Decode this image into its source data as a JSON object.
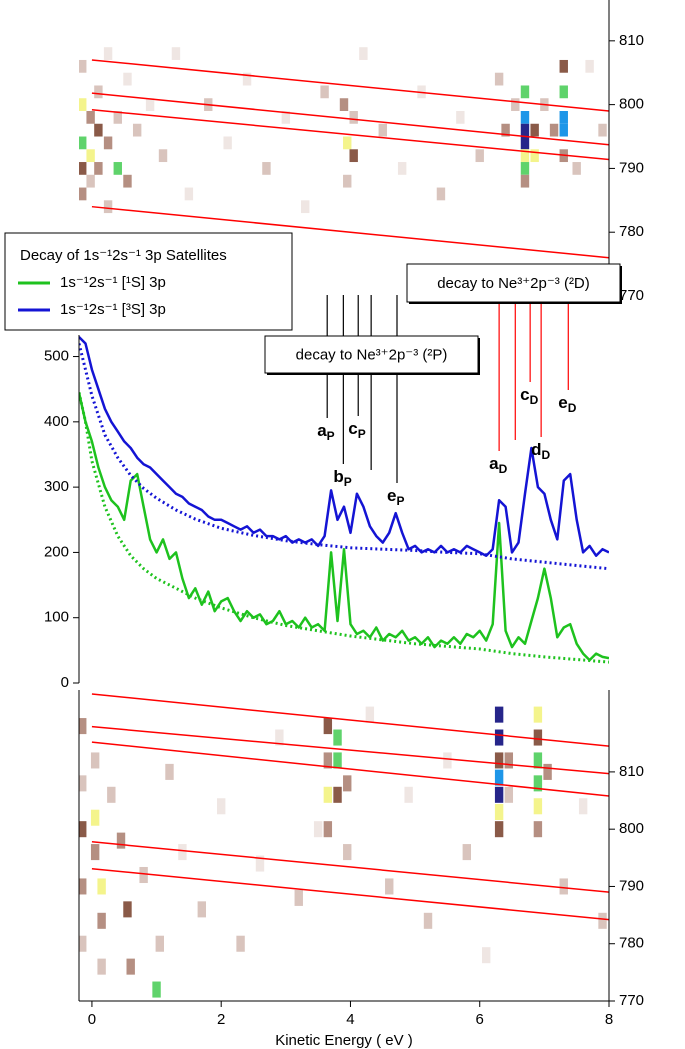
{
  "chart_data": [
    {
      "type": "heatmap",
      "xlim": [
        -0.2,
        8
      ],
      "ylim": [
        770,
        816.4
      ],
      "yticks": [
        770,
        780,
        790,
        800,
        810
      ],
      "yaxis": "right",
      "colorscale": [
        "#ffffff",
        "#efe6e3",
        "#d9c4bd",
        "#b58f82",
        "#8a5a48",
        "#f4f48c",
        "#5fd36b",
        "#1e96e8",
        "#26258a"
      ],
      "cells": [
        [
          -0.15,
          800,
          5
        ],
        [
          -0.15,
          794,
          6
        ],
        [
          -0.15,
          790,
          4
        ],
        [
          -0.15,
          806,
          2
        ],
        [
          -0.15,
          786,
          3
        ],
        [
          -0.02,
          798,
          3
        ],
        [
          -0.02,
          792,
          5
        ],
        [
          -0.02,
          788,
          2
        ],
        [
          0.1,
          802,
          2
        ],
        [
          0.1,
          796,
          4
        ],
        [
          0.1,
          790,
          3
        ],
        [
          0.25,
          808,
          1
        ],
        [
          0.25,
          794,
          3
        ],
        [
          0.25,
          784,
          2
        ],
        [
          0.4,
          790,
          6
        ],
        [
          0.4,
          798,
          2
        ],
        [
          0.55,
          804,
          1
        ],
        [
          0.55,
          788,
          3
        ],
        [
          0.7,
          796,
          2
        ],
        [
          0.9,
          800,
          1
        ],
        [
          1.1,
          792,
          2
        ],
        [
          1.3,
          808,
          1
        ],
        [
          1.5,
          786,
          1
        ],
        [
          1.8,
          800,
          2
        ],
        [
          2.1,
          794,
          1
        ],
        [
          2.4,
          804,
          1
        ],
        [
          2.7,
          790,
          2
        ],
        [
          3.0,
          798,
          1
        ],
        [
          3.3,
          784,
          1
        ],
        [
          3.6,
          802,
          2
        ],
        [
          3.9,
          800,
          3
        ],
        [
          3.95,
          794,
          5
        ],
        [
          4.05,
          792,
          4
        ],
        [
          4.05,
          798,
          2
        ],
        [
          3.95,
          788,
          2
        ],
        [
          4.2,
          808,
          1
        ],
        [
          4.5,
          796,
          2
        ],
        [
          4.8,
          790,
          1
        ],
        [
          5.1,
          802,
          1
        ],
        [
          5.4,
          786,
          2
        ],
        [
          5.7,
          798,
          1
        ],
        [
          6.0,
          792,
          2
        ],
        [
          6.3,
          804,
          2
        ],
        [
          6.4,
          796,
          3
        ],
        [
          6.55,
          800,
          2
        ],
        [
          6.7,
          802,
          6
        ],
        [
          6.7,
          798,
          7
        ],
        [
          6.7,
          796,
          8
        ],
        [
          6.7,
          794,
          8
        ],
        [
          6.7,
          792,
          5
        ],
        [
          6.7,
          790,
          6
        ],
        [
          6.7,
          788,
          3
        ],
        [
          6.85,
          796,
          4
        ],
        [
          6.85,
          792,
          5
        ],
        [
          7.0,
          800,
          2
        ],
        [
          7.15,
          796,
          3
        ],
        [
          7.3,
          802,
          6
        ],
        [
          7.3,
          798,
          7
        ],
        [
          7.3,
          796,
          7
        ],
        [
          7.3,
          806,
          4
        ],
        [
          7.3,
          792,
          3
        ],
        [
          7.5,
          790,
          2
        ],
        [
          7.7,
          806,
          1
        ],
        [
          7.9,
          796,
          2
        ]
      ],
      "line_color": "#ff0000",
      "lines": [
        {
          "x": [
            0,
            8
          ],
          "y": [
            807.0,
            799.0
          ]
        },
        {
          "x": [
            0,
            8
          ],
          "y": [
            801.8,
            793.7
          ]
        },
        {
          "x": [
            0,
            8
          ],
          "y": [
            799.2,
            791.4
          ]
        },
        {
          "x": [
            0,
            8
          ],
          "y": [
            784.0,
            776.0
          ]
        }
      ]
    },
    {
      "type": "line",
      "xlim": [
        -0.2,
        8
      ],
      "ylim": [
        0,
        533
      ],
      "yticks": [
        0,
        100,
        200,
        300,
        400,
        500
      ],
      "yaxis": "left",
      "legend": "upper left",
      "legend_title": "Decay of 1s⁻¹2s⁻¹ 3p Satellites",
      "x": [
        -0.2,
        -0.1,
        0,
        0.1,
        0.2,
        0.3,
        0.4,
        0.5,
        0.6,
        0.7,
        0.8,
        0.9,
        1.0,
        1.1,
        1.2,
        1.3,
        1.4,
        1.5,
        1.6,
        1.7,
        1.8,
        1.9,
        2.0,
        2.1,
        2.2,
        2.3,
        2.4,
        2.5,
        2.6,
        2.7,
        2.8,
        2.9,
        3.0,
        3.1,
        3.2,
        3.3,
        3.4,
        3.5,
        3.6,
        3.7,
        3.8,
        3.9,
        4.0,
        4.1,
        4.2,
        4.3,
        4.4,
        4.5,
        4.6,
        4.7,
        4.8,
        4.9,
        5.0,
        5.1,
        5.2,
        5.3,
        5.4,
        5.5,
        5.6,
        5.7,
        5.8,
        5.9,
        6.0,
        6.1,
        6.2,
        6.3,
        6.4,
        6.5,
        6.6,
        6.7,
        6.8,
        6.9,
        7.0,
        7.1,
        7.2,
        7.3,
        7.4,
        7.5,
        7.6,
        7.7,
        7.8,
        7.9,
        8.0
      ],
      "series": [
        {
          "name": "1s⁻¹2s⁻¹ [¹S] 3p",
          "color": "#1ec21e",
          "style": "solid",
          "values": [
            445,
            400,
            370,
            330,
            300,
            280,
            270,
            250,
            310,
            320,
            270,
            220,
            200,
            220,
            190,
            200,
            160,
            130,
            145,
            120,
            140,
            110,
            125,
            130,
            110,
            95,
            110,
            100,
            105,
            90,
            95,
            110,
            90,
            95,
            85,
            100,
            85,
            90,
            80,
            200,
            95,
            205,
            90,
            75,
            80,
            70,
            85,
            65,
            75,
            70,
            80,
            65,
            70,
            60,
            70,
            55,
            65,
            60,
            70,
            60,
            75,
            70,
            80,
            65,
            90,
            245,
            80,
            55,
            70,
            60,
            95,
            130,
            175,
            130,
            70,
            85,
            90,
            60,
            45,
            35,
            45,
            40,
            38
          ]
        },
        {
          "name": "1s⁻¹2s⁻¹ [³S] 3p",
          "color": "#1414d4",
          "style": "solid",
          "values": [
            530,
            520,
            480,
            450,
            420,
            400,
            385,
            370,
            360,
            345,
            335,
            330,
            320,
            310,
            300,
            290,
            285,
            275,
            270,
            265,
            255,
            250,
            250,
            245,
            240,
            235,
            240,
            230,
            235,
            225,
            225,
            220,
            225,
            215,
            220,
            215,
            220,
            210,
            225,
            295,
            250,
            270,
            230,
            290,
            270,
            240,
            225,
            215,
            230,
            260,
            230,
            205,
            210,
            200,
            205,
            200,
            210,
            200,
            205,
            200,
            210,
            205,
            200,
            195,
            205,
            280,
            270,
            200,
            215,
            290,
            360,
            300,
            290,
            250,
            220,
            310,
            320,
            250,
            200,
            210,
            195,
            205,
            200
          ]
        },
        {
          "color": "#1414d4",
          "style": "dotted",
          "x": [
            -0.2,
            -0.1,
            0,
            0.2,
            0.4,
            0.6,
            0.8,
            1.0,
            1.3,
            1.6,
            2.0,
            2.5,
            3.0,
            3.5,
            4.0,
            4.5,
            5.0,
            5.5,
            6.0,
            6.5,
            7.0,
            7.5,
            8.0
          ],
          "values": [
            520,
            480,
            440,
            380,
            345,
            318,
            298,
            283,
            265,
            251,
            237,
            226,
            218,
            212,
            207,
            205,
            203,
            200,
            198,
            190,
            185,
            180,
            175
          ]
        },
        {
          "color": "#1ec21e",
          "style": "dotted",
          "x": [
            -0.2,
            -0.1,
            0,
            0.2,
            0.4,
            0.6,
            0.8,
            1.0,
            1.3,
            1.6,
            2.0,
            2.5,
            3.0,
            3.5,
            4.0,
            4.5,
            5.0,
            5.5,
            6.0,
            6.5,
            7.0,
            7.5,
            8.0
          ],
          "values": [
            445,
            400,
            340,
            270,
            225,
            195,
            175,
            160,
            145,
            130,
            115,
            100,
            88,
            80,
            72,
            66,
            60,
            56,
            52,
            45,
            40,
            36,
            32
          ]
        }
      ],
      "annotations": [
        {
          "text": "decay to Ne³⁺2p⁻³ (²P)",
          "color": "#000000",
          "peaks": [
            {
              "label": "a",
              "sub": "P",
              "x": 3.64
            },
            {
              "label": "b",
              "sub": "P",
              "x": 3.89
            },
            {
              "label": "c",
              "sub": "P",
              "x": 4.12
            },
            {
              "label": null,
              "x": 4.32
            },
            {
              "label": "e",
              "sub": "P",
              "x": 4.72
            }
          ]
        },
        {
          "text": "decay to Ne³⁺2p⁻³ (²D)",
          "color": "#ff0000",
          "peaks": [
            {
              "label": "a",
              "sub": "D",
              "x": 6.3
            },
            {
              "label": null,
              "x": 6.55
            },
            {
              "label": "c",
              "sub": "D",
              "x": 6.78
            },
            {
              "label": "d",
              "sub": "D",
              "x": 6.95
            },
            {
              "label": "e",
              "sub": "D",
              "x": 7.37
            }
          ]
        }
      ]
    },
    {
      "type": "heatmap",
      "xlim": [
        -0.2,
        8
      ],
      "ylim": [
        770,
        824.3
      ],
      "yticks": [
        770,
        780,
        790,
        800,
        810
      ],
      "yaxis": "right",
      "xticks": [
        0,
        2,
        4,
        6,
        8
      ],
      "xlabel": "Kinetic Energy ( eV )",
      "colorscale": [
        "#ffffff",
        "#efe6e3",
        "#d9c4bd",
        "#b58f82",
        "#8a5a48",
        "#f4f48c",
        "#5fd36b",
        "#1e96e8",
        "#26258a"
      ],
      "cells": [
        [
          -0.15,
          818,
          3
        ],
        [
          -0.15,
          808,
          2
        ],
        [
          -0.15,
          800,
          4
        ],
        [
          -0.15,
          790,
          3
        ],
        [
          -0.15,
          780,
          2
        ],
        [
          0.05,
          802,
          5
        ],
        [
          0.05,
          812,
          2
        ],
        [
          0.05,
          796,
          3
        ],
        [
          0.15,
          790,
          5
        ],
        [
          0.15,
          784,
          3
        ],
        [
          0.15,
          776,
          2
        ],
        [
          0.3,
          806,
          2
        ],
        [
          0.45,
          798,
          3
        ],
        [
          0.55,
          786,
          4
        ],
        [
          0.6,
          776,
          3
        ],
        [
          0.8,
          792,
          2
        ],
        [
          1.0,
          772,
          6
        ],
        [
          1.05,
          780,
          2
        ],
        [
          1.2,
          810,
          2
        ],
        [
          1.4,
          796,
          1
        ],
        [
          1.7,
          786,
          2
        ],
        [
          2.0,
          804,
          1
        ],
        [
          2.3,
          780,
          2
        ],
        [
          2.6,
          794,
          1
        ],
        [
          2.9,
          816,
          1
        ],
        [
          3.2,
          788,
          2
        ],
        [
          3.5,
          800,
          1
        ],
        [
          3.65,
          818,
          4
        ],
        [
          3.65,
          812,
          3
        ],
        [
          3.65,
          806,
          5
        ],
        [
          3.65,
          800,
          3
        ],
        [
          3.8,
          816,
          6
        ],
        [
          3.8,
          812,
          6
        ],
        [
          3.8,
          806,
          4
        ],
        [
          3.95,
          808,
          3
        ],
        [
          3.95,
          796,
          2
        ],
        [
          4.3,
          820,
          1
        ],
        [
          4.6,
          790,
          2
        ],
        [
          4.9,
          806,
          1
        ],
        [
          5.2,
          784,
          2
        ],
        [
          5.5,
          812,
          1
        ],
        [
          5.8,
          796,
          2
        ],
        [
          6.1,
          778,
          1
        ],
        [
          6.3,
          820,
          8
        ],
        [
          6.3,
          816,
          8
        ],
        [
          6.3,
          812,
          4
        ],
        [
          6.3,
          809,
          7
        ],
        [
          6.3,
          806,
          8
        ],
        [
          6.3,
          803,
          5
        ],
        [
          6.3,
          800,
          4
        ],
        [
          6.45,
          812,
          3
        ],
        [
          6.45,
          806,
          2
        ],
        [
          6.9,
          820,
          5
        ],
        [
          6.9,
          816,
          4
        ],
        [
          6.9,
          812,
          6
        ],
        [
          6.9,
          808,
          6
        ],
        [
          6.9,
          804,
          5
        ],
        [
          6.9,
          800,
          3
        ],
        [
          7.05,
          810,
          3
        ],
        [
          7.3,
          790,
          2
        ],
        [
          7.6,
          804,
          1
        ],
        [
          7.9,
          784,
          2
        ]
      ],
      "line_color": "#ff0000",
      "lines": [
        {
          "x": [
            0,
            8
          ],
          "y": [
            823.6,
            814.5
          ]
        },
        {
          "x": [
            0,
            8
          ],
          "y": [
            817.9,
            809.7
          ]
        },
        {
          "x": [
            0,
            8
          ],
          "y": [
            815.2,
            805.8
          ]
        },
        {
          "x": [
            0,
            8
          ],
          "y": [
            797.8,
            789.0
          ]
        },
        {
          "x": [
            0,
            8
          ],
          "y": [
            793.1,
            784.2
          ]
        }
      ]
    }
  ]
}
